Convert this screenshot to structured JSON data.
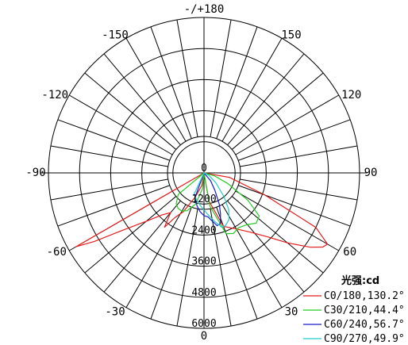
{
  "chart_data": {
    "type": "polar",
    "title": "",
    "angle_labels": [
      {
        "angle": 180,
        "text": "-/+180"
      },
      {
        "angle": 150,
        "text": "150"
      },
      {
        "angle": -150,
        "text": "-150"
      },
      {
        "angle": 120,
        "text": "120"
      },
      {
        "angle": -120,
        "text": "-120"
      },
      {
        "angle": 90,
        "text": "90"
      },
      {
        "angle": -90,
        "text": "-90"
      },
      {
        "angle": 60,
        "text": "60"
      },
      {
        "angle": -60,
        "text": "-60"
      },
      {
        "angle": 30,
        "text": "30"
      },
      {
        "angle": -30,
        "text": "-30"
      },
      {
        "angle": 0,
        "text": "0"
      }
    ],
    "radial_max": 6000,
    "radial_ticks": [
      0,
      1200,
      2400,
      3600,
      4800,
      6000
    ],
    "radial_tick_labels": [
      "0",
      "1200",
      "2400",
      "3600",
      "4800",
      "6000"
    ],
    "angle_step_deg": 10,
    "grid": true,
    "legend": {
      "title": "光强:cd",
      "placement": "bottom-right"
    },
    "series": [
      {
        "name": "C0/180,130.2°",
        "color": "#e31a1c",
        "points": [
          [
            -60,
            5700
          ],
          [
            -58,
            5000
          ],
          [
            -55,
            3900
          ],
          [
            -50,
            2900
          ],
          [
            -45,
            2300
          ],
          [
            -40,
            2000
          ],
          [
            -36,
            2600
          ],
          [
            -33,
            2050
          ],
          [
            -28,
            1700
          ],
          [
            -20,
            1000
          ],
          [
            -10,
            500
          ],
          [
            0,
            0
          ],
          [
            10,
            1100
          ],
          [
            20,
            2200
          ],
          [
            30,
            2500
          ],
          [
            38,
            2900
          ],
          [
            45,
            3500
          ],
          [
            50,
            4200
          ],
          [
            55,
            5000
          ],
          [
            58,
            5400
          ],
          [
            60,
            5500
          ],
          [
            64,
            4800
          ],
          [
            70,
            2500
          ],
          [
            80,
            1000
          ],
          [
            90,
            0
          ]
        ]
      },
      {
        "name": "C30/210,44.4°",
        "color": "#22cc22",
        "points": [
          [
            -50,
            1300
          ],
          [
            -42,
            1600
          ],
          [
            -36,
            1700
          ],
          [
            -30,
            1700
          ],
          [
            -24,
            1600
          ],
          [
            -15,
            1250
          ],
          [
            -5,
            600
          ],
          [
            0,
            0
          ],
          [
            10,
            1300
          ],
          [
            20,
            2500
          ],
          [
            26,
            2600
          ],
          [
            32,
            2500
          ],
          [
            40,
            2600
          ],
          [
            46,
            2800
          ],
          [
            52,
            2700
          ],
          [
            58,
            2000
          ],
          [
            66,
            1000
          ],
          [
            75,
            400
          ],
          [
            90,
            0
          ]
        ]
      },
      {
        "name": "C60/240,56.7°",
        "color": "#1a1acc",
        "points": [
          [
            -20,
            1000
          ],
          [
            -12,
            1300
          ],
          [
            -6,
            1500
          ],
          [
            0,
            1650
          ],
          [
            5,
            1700
          ],
          [
            10,
            1900
          ],
          [
            14,
            2100
          ],
          [
            18,
            2050
          ],
          [
            22,
            1700
          ],
          [
            26,
            1350
          ],
          [
            32,
            800
          ],
          [
            40,
            400
          ],
          [
            55,
            0
          ]
        ]
      },
      {
        "name": "C90/270,49.9°",
        "color": "#22cccc",
        "points": [
          [
            -25,
            900
          ],
          [
            -15,
            1100
          ],
          [
            -5,
            1300
          ],
          [
            5,
            1600
          ],
          [
            12,
            1900
          ],
          [
            18,
            2200
          ],
          [
            22,
            2200
          ],
          [
            28,
            2050
          ],
          [
            34,
            1700
          ],
          [
            40,
            1200
          ],
          [
            50,
            600
          ],
          [
            65,
            200
          ],
          [
            90,
            0
          ]
        ]
      }
    ]
  }
}
